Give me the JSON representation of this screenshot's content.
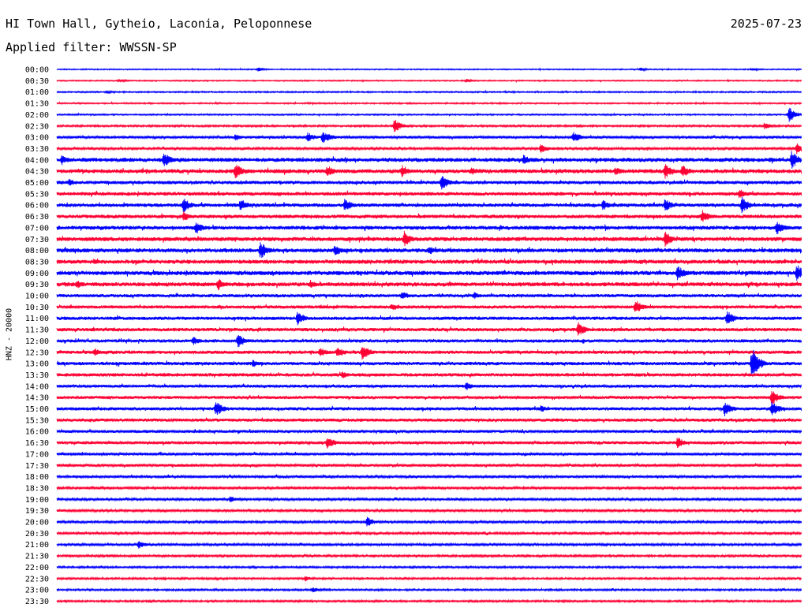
{
  "header": {
    "station": "HI Town Hall, Gytheio, Laconia, Peloponnese",
    "date": "2025-07-23",
    "filter": "Applied filter: WWSSN-SP"
  },
  "colors": {
    "trace_even": "#0000ff",
    "trace_odd": "#ff0033",
    "background": "#ffffff",
    "text": "#000000"
  },
  "chart_data": {
    "type": "line",
    "title": "HI Town Hall, Gytheio, Laconia, Peloponnese",
    "ylabel": "HNZ - 20000",
    "row_labels": [
      "00:00",
      "00:30",
      "01:00",
      "01:30",
      "02:00",
      "02:30",
      "03:00",
      "03:30",
      "04:00",
      "04:30",
      "05:00",
      "05:30",
      "06:00",
      "06:30",
      "07:00",
      "07:30",
      "08:00",
      "08:30",
      "09:00",
      "09:30",
      "10:00",
      "10:30",
      "11:00",
      "11:30",
      "12:00",
      "12:30",
      "13:00",
      "13:30",
      "14:00",
      "14:30",
      "15:00",
      "15:30",
      "16:00",
      "16:30",
      "17:00",
      "17:30",
      "18:00",
      "18:30",
      "19:00",
      "19:30",
      "20:00",
      "20:30",
      "21:00",
      "21:30",
      "22:00",
      "22:30",
      "23:00",
      "23:30"
    ],
    "row_noise_level": [
      0.5,
      0.5,
      0.6,
      0.6,
      0.6,
      0.8,
      1.2,
      1.0,
      1.8,
      1.8,
      1.5,
      1.6,
      1.6,
      1.6,
      1.7,
      1.8,
      1.8,
      1.8,
      1.9,
      1.8,
      1.4,
      1.4,
      1.5,
      1.5,
      1.4,
      1.5,
      1.5,
      1.5,
      1.3,
      1.3,
      1.4,
      1.4,
      1.3,
      1.3,
      1.2,
      1.2,
      1.1,
      1.0,
      1.0,
      1.0,
      1.0,
      1.0,
      1.0,
      0.9,
      0.8,
      0.8,
      0.8,
      0.8
    ],
    "events": [
      {
        "row": 0,
        "minute": 8.1,
        "amplitude": 3
      },
      {
        "row": 0,
        "minute": 23.5,
        "amplitude": 2.5
      },
      {
        "row": 0,
        "minute": 28.0,
        "amplitude": 2.5
      },
      {
        "row": 1,
        "minute": 2.5,
        "amplitude": 2.5
      },
      {
        "row": 1,
        "minute": 16.5,
        "amplitude": 2.5
      },
      {
        "row": 2,
        "minute": 2.0,
        "amplitude": 2
      },
      {
        "row": 4,
        "minute": 29.5,
        "amplitude": 10
      },
      {
        "row": 5,
        "minute": 13.6,
        "amplitude": 9
      },
      {
        "row": 5,
        "minute": 28.5,
        "amplitude": 5
      },
      {
        "row": 6,
        "minute": 7.2,
        "amplitude": 5
      },
      {
        "row": 6,
        "minute": 10.1,
        "amplitude": 7
      },
      {
        "row": 6,
        "minute": 10.7,
        "amplitude": 8
      },
      {
        "row": 6,
        "minute": 10.9,
        "amplitude": 6
      },
      {
        "row": 6,
        "minute": 20.8,
        "amplitude": 8
      },
      {
        "row": 7,
        "minute": 19.5,
        "amplitude": 7
      },
      {
        "row": 7,
        "minute": 29.8,
        "amplitude": 8
      },
      {
        "row": 8,
        "minute": 0.2,
        "amplitude": 7
      },
      {
        "row": 8,
        "minute": 4.3,
        "amplitude": 11
      },
      {
        "row": 8,
        "minute": 18.8,
        "amplitude": 7
      },
      {
        "row": 8,
        "minute": 29.6,
        "amplitude": 12
      },
      {
        "row": 9,
        "minute": 7.2,
        "amplitude": 11
      },
      {
        "row": 9,
        "minute": 10.9,
        "amplitude": 8
      },
      {
        "row": 9,
        "minute": 13.9,
        "amplitude": 9
      },
      {
        "row": 9,
        "minute": 16.7,
        "amplitude": 6
      },
      {
        "row": 9,
        "minute": 22.5,
        "amplitude": 6
      },
      {
        "row": 9,
        "minute": 24.5,
        "amplitude": 10
      },
      {
        "row": 9,
        "minute": 25.2,
        "amplitude": 9
      },
      {
        "row": 10,
        "minute": 15.5,
        "amplitude": 10
      },
      {
        "row": 10,
        "minute": 0.5,
        "amplitude": 5
      },
      {
        "row": 11,
        "minute": 27.5,
        "amplitude": 7
      },
      {
        "row": 12,
        "minute": 5.1,
        "amplitude": 10
      },
      {
        "row": 12,
        "minute": 7.4,
        "amplitude": 9
      },
      {
        "row": 12,
        "minute": 11.6,
        "amplitude": 9
      },
      {
        "row": 12,
        "minute": 22.0,
        "amplitude": 7
      },
      {
        "row": 12,
        "minute": 24.5,
        "amplitude": 9
      },
      {
        "row": 12,
        "minute": 27.6,
        "amplitude": 11
      },
      {
        "row": 13,
        "minute": 5.1,
        "amplitude": 7
      },
      {
        "row": 13,
        "minute": 26.0,
        "amplitude": 10
      },
      {
        "row": 14,
        "minute": 5.6,
        "amplitude": 9
      },
      {
        "row": 14,
        "minute": 29.0,
        "amplitude": 10
      },
      {
        "row": 15,
        "minute": 14.0,
        "amplitude": 11
      },
      {
        "row": 15,
        "minute": 24.5,
        "amplitude": 11
      },
      {
        "row": 16,
        "minute": 8.2,
        "amplitude": 12
      },
      {
        "row": 16,
        "minute": 11.2,
        "amplitude": 8
      },
      {
        "row": 16,
        "minute": 15.0,
        "amplitude": 6
      },
      {
        "row": 17,
        "minute": 1.5,
        "amplitude": 5
      },
      {
        "row": 18,
        "minute": 25.0,
        "amplitude": 11
      },
      {
        "row": 18,
        "minute": 29.8,
        "amplitude": 12
      },
      {
        "row": 19,
        "minute": 6.5,
        "amplitude": 9
      },
      {
        "row": 19,
        "minute": 10.2,
        "amplitude": 6
      },
      {
        "row": 19,
        "minute": 0.8,
        "amplitude": 6
      },
      {
        "row": 20,
        "minute": 13.9,
        "amplitude": 6
      },
      {
        "row": 20,
        "minute": 16.8,
        "amplitude": 5
      },
      {
        "row": 21,
        "minute": 13.5,
        "amplitude": 6
      },
      {
        "row": 21,
        "minute": 23.3,
        "amplitude": 10
      },
      {
        "row": 22,
        "minute": 9.7,
        "amplitude": 10
      },
      {
        "row": 22,
        "minute": 27.0,
        "amplitude": 11
      },
      {
        "row": 23,
        "minute": 21.0,
        "amplitude": 10
      },
      {
        "row": 24,
        "minute": 7.3,
        "amplitude": 10
      },
      {
        "row": 24,
        "minute": 5.5,
        "amplitude": 6
      },
      {
        "row": 25,
        "minute": 12.3,
        "amplitude": 11
      },
      {
        "row": 25,
        "minute": 11.3,
        "amplitude": 8
      },
      {
        "row": 25,
        "minute": 10.6,
        "amplitude": 7
      },
      {
        "row": 25,
        "minute": 1.5,
        "amplitude": 6
      },
      {
        "row": 26,
        "minute": 28.0,
        "amplitude": 22
      },
      {
        "row": 26,
        "minute": 7.9,
        "amplitude": 5
      },
      {
        "row": 27,
        "minute": 11.5,
        "amplitude": 5
      },
      {
        "row": 28,
        "minute": 16.5,
        "amplitude": 6
      },
      {
        "row": 29,
        "minute": 28.8,
        "amplitude": 11
      },
      {
        "row": 30,
        "minute": 6.4,
        "amplitude": 11
      },
      {
        "row": 30,
        "minute": 26.9,
        "amplitude": 11
      },
      {
        "row": 30,
        "minute": 28.8,
        "amplitude": 11
      },
      {
        "row": 30,
        "minute": 19.5,
        "amplitude": 5
      },
      {
        "row": 33,
        "minute": 10.9,
        "amplitude": 9
      },
      {
        "row": 33,
        "minute": 25.0,
        "amplitude": 8
      },
      {
        "row": 38,
        "minute": 7.0,
        "amplitude": 5
      },
      {
        "row": 40,
        "minute": 12.5,
        "amplitude": 7
      },
      {
        "row": 42,
        "minute": 3.3,
        "amplitude": 6
      },
      {
        "row": 45,
        "minute": 10.0,
        "amplitude": 4
      },
      {
        "row": 46,
        "minute": 10.3,
        "amplitude": 4
      }
    ]
  }
}
